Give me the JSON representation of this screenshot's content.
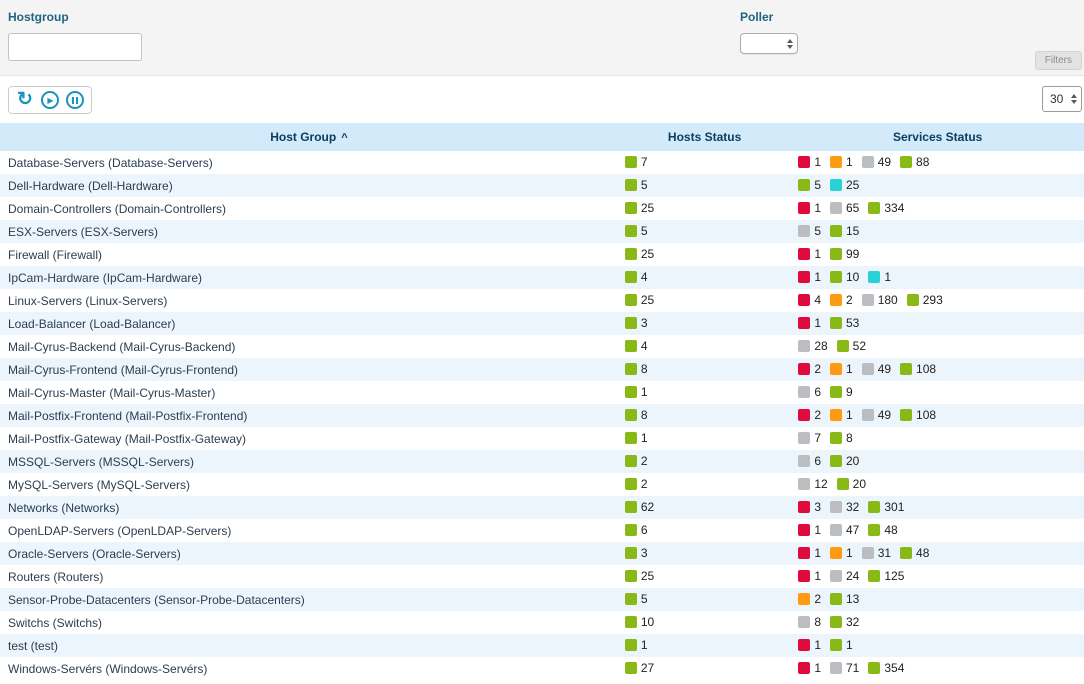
{
  "filters": {
    "hostgroup_label": "Hostgroup",
    "hostgroup_value": "",
    "poller_label": "Poller",
    "poller_value": "",
    "filters_button": "Filters"
  },
  "toolbar": {
    "refresh_glyph": "↻",
    "play_glyph": "▶",
    "page_size": "30"
  },
  "table": {
    "columns": [
      "Host Group",
      "Hosts Status",
      "Services Status"
    ],
    "sort_indicator": "^",
    "rows": [
      {
        "name": "Database-Servers (Database-Servers)",
        "hosts": [
          {
            "status": "ok",
            "count": 7
          }
        ],
        "services": [
          {
            "status": "critical",
            "count": 1
          },
          {
            "status": "warning",
            "count": 1
          },
          {
            "status": "unknown",
            "count": 49
          },
          {
            "status": "ok",
            "count": 88
          }
        ]
      },
      {
        "name": "Dell-Hardware (Dell-Hardware)",
        "hosts": [
          {
            "status": "ok",
            "count": 5
          }
        ],
        "services": [
          {
            "status": "ok",
            "count": 5
          },
          {
            "status": "pending",
            "count": 25
          }
        ]
      },
      {
        "name": "Domain-Controllers (Domain-Controllers)",
        "hosts": [
          {
            "status": "ok",
            "count": 25
          }
        ],
        "services": [
          {
            "status": "critical",
            "count": 1
          },
          {
            "status": "unknown",
            "count": 65
          },
          {
            "status": "ok",
            "count": 334
          }
        ]
      },
      {
        "name": "ESX-Servers (ESX-Servers)",
        "hosts": [
          {
            "status": "ok",
            "count": 5
          }
        ],
        "services": [
          {
            "status": "unknown",
            "count": 5
          },
          {
            "status": "ok",
            "count": 15
          }
        ]
      },
      {
        "name": "Firewall (Firewall)",
        "hosts": [
          {
            "status": "ok",
            "count": 25
          }
        ],
        "services": [
          {
            "status": "critical",
            "count": 1
          },
          {
            "status": "ok",
            "count": 99
          }
        ]
      },
      {
        "name": "IpCam-Hardware (IpCam-Hardware)",
        "hosts": [
          {
            "status": "ok",
            "count": 4
          }
        ],
        "services": [
          {
            "status": "critical",
            "count": 1
          },
          {
            "status": "ok",
            "count": 10
          },
          {
            "status": "pending",
            "count": 1
          }
        ]
      },
      {
        "name": "Linux-Servers (Linux-Servers)",
        "hosts": [
          {
            "status": "ok",
            "count": 25
          }
        ],
        "services": [
          {
            "status": "critical",
            "count": 4
          },
          {
            "status": "warning",
            "count": 2
          },
          {
            "status": "unknown",
            "count": 180
          },
          {
            "status": "ok",
            "count": 293
          }
        ]
      },
      {
        "name": "Load-Balancer (Load-Balancer)",
        "hosts": [
          {
            "status": "ok",
            "count": 3
          }
        ],
        "services": [
          {
            "status": "critical",
            "count": 1
          },
          {
            "status": "ok",
            "count": 53
          }
        ]
      },
      {
        "name": "Mail-Cyrus-Backend (Mail-Cyrus-Backend)",
        "hosts": [
          {
            "status": "ok",
            "count": 4
          }
        ],
        "services": [
          {
            "status": "unknown",
            "count": 28
          },
          {
            "status": "ok",
            "count": 52
          }
        ]
      },
      {
        "name": "Mail-Cyrus-Frontend (Mail-Cyrus-Frontend)",
        "hosts": [
          {
            "status": "ok",
            "count": 8
          }
        ],
        "services": [
          {
            "status": "critical",
            "count": 2
          },
          {
            "status": "warning",
            "count": 1
          },
          {
            "status": "unknown",
            "count": 49
          },
          {
            "status": "ok",
            "count": 108
          }
        ]
      },
      {
        "name": "Mail-Cyrus-Master (Mail-Cyrus-Master)",
        "hosts": [
          {
            "status": "ok",
            "count": 1
          }
        ],
        "services": [
          {
            "status": "unknown",
            "count": 6
          },
          {
            "status": "ok",
            "count": 9
          }
        ]
      },
      {
        "name": "Mail-Postfix-Frontend (Mail-Postfix-Frontend)",
        "hosts": [
          {
            "status": "ok",
            "count": 8
          }
        ],
        "services": [
          {
            "status": "critical",
            "count": 2
          },
          {
            "status": "warning",
            "count": 1
          },
          {
            "status": "unknown",
            "count": 49
          },
          {
            "status": "ok",
            "count": 108
          }
        ]
      },
      {
        "name": "Mail-Postfix-Gateway (Mail-Postfix-Gateway)",
        "hosts": [
          {
            "status": "ok",
            "count": 1
          }
        ],
        "services": [
          {
            "status": "unknown",
            "count": 7
          },
          {
            "status": "ok",
            "count": 8
          }
        ]
      },
      {
        "name": "MSSQL-Servers (MSSQL-Servers)",
        "hosts": [
          {
            "status": "ok",
            "count": 2
          }
        ],
        "services": [
          {
            "status": "unknown",
            "count": 6
          },
          {
            "status": "ok",
            "count": 20
          }
        ]
      },
      {
        "name": "MySQL-Servers (MySQL-Servers)",
        "hosts": [
          {
            "status": "ok",
            "count": 2
          }
        ],
        "services": [
          {
            "status": "unknown",
            "count": 12
          },
          {
            "status": "ok",
            "count": 20
          }
        ]
      },
      {
        "name": "Networks (Networks)",
        "hosts": [
          {
            "status": "ok",
            "count": 62
          }
        ],
        "services": [
          {
            "status": "critical",
            "count": 3
          },
          {
            "status": "unknown",
            "count": 32
          },
          {
            "status": "ok",
            "count": 301
          }
        ]
      },
      {
        "name": "OpenLDAP-Servers (OpenLDAP-Servers)",
        "hosts": [
          {
            "status": "ok",
            "count": 6
          }
        ],
        "services": [
          {
            "status": "critical",
            "count": 1
          },
          {
            "status": "unknown",
            "count": 47
          },
          {
            "status": "ok",
            "count": 48
          }
        ]
      },
      {
        "name": "Oracle-Servers (Oracle-Servers)",
        "hosts": [
          {
            "status": "ok",
            "count": 3
          }
        ],
        "services": [
          {
            "status": "critical",
            "count": 1
          },
          {
            "status": "warning",
            "count": 1
          },
          {
            "status": "unknown",
            "count": 31
          },
          {
            "status": "ok",
            "count": 48
          }
        ]
      },
      {
        "name": "Routers (Routers)",
        "hosts": [
          {
            "status": "ok",
            "count": 25
          }
        ],
        "services": [
          {
            "status": "critical",
            "count": 1
          },
          {
            "status": "unknown",
            "count": 24
          },
          {
            "status": "ok",
            "count": 125
          }
        ]
      },
      {
        "name": "Sensor-Probe-Datacenters (Sensor-Probe-Datacenters)",
        "hosts": [
          {
            "status": "ok",
            "count": 5
          }
        ],
        "services": [
          {
            "status": "warning",
            "count": 2
          },
          {
            "status": "ok",
            "count": 13
          }
        ]
      },
      {
        "name": "Switchs (Switchs)",
        "hosts": [
          {
            "status": "ok",
            "count": 10
          }
        ],
        "services": [
          {
            "status": "unknown",
            "count": 8
          },
          {
            "status": "ok",
            "count": 32
          }
        ]
      },
      {
        "name": "test (test)",
        "hosts": [
          {
            "status": "ok",
            "count": 1
          }
        ],
        "services": [
          {
            "status": "critical",
            "count": 1
          },
          {
            "status": "ok",
            "count": 1
          }
        ]
      },
      {
        "name": "Windows-Servérs (Windows-Servérs)",
        "hosts": [
          {
            "status": "ok",
            "count": 27
          }
        ],
        "services": [
          {
            "status": "critical",
            "count": 1
          },
          {
            "status": "unknown",
            "count": 71
          },
          {
            "status": "ok",
            "count": 354
          }
        ]
      }
    ]
  },
  "status_colors": {
    "ok": "#88b917",
    "critical": "#e00b3d",
    "warning": "#ff9a13",
    "unknown": "#bcbdc0",
    "pending": "#2ad1d4"
  }
}
